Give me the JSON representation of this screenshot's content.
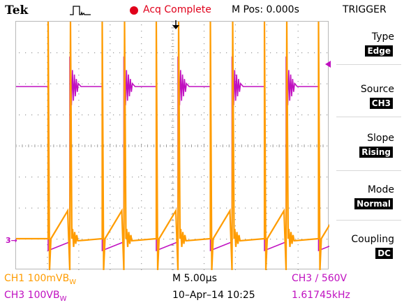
{
  "header": {
    "brand": "Tek",
    "acquisition_status": "Acq Complete",
    "position": "M Pos: 0.000s",
    "menu_title": "TRIGGER"
  },
  "trigger_menu": [
    {
      "label": "Type",
      "value": "Edge"
    },
    {
      "label": "Source",
      "value": "CH3"
    },
    {
      "label": "Slope",
      "value": "Rising"
    },
    {
      "label": "Mode",
      "value": "Normal"
    },
    {
      "label": "Coupling",
      "value": "DC"
    }
  ],
  "status": {
    "ch1_scale": "CH1  100mVB",
    "ch1_suffix": "W",
    "ch3_scale": "CH3  100VB",
    "ch3_suffix": "W",
    "timebase": "M 5.00µs",
    "date_time": "10–Apr–14 10:25",
    "trigger_setting": "CH3 ∕ 560V",
    "frequency": "1.61745kHz"
  },
  "channel_markers": {
    "ch3": "3"
  },
  "colors": {
    "ch1": "#ff9c00",
    "ch3": "#c010c0",
    "acq_indicator": "#e0001b"
  },
  "waveforms": {
    "ch1_color_name": "orange",
    "ch3_color_name": "magenta"
  }
}
